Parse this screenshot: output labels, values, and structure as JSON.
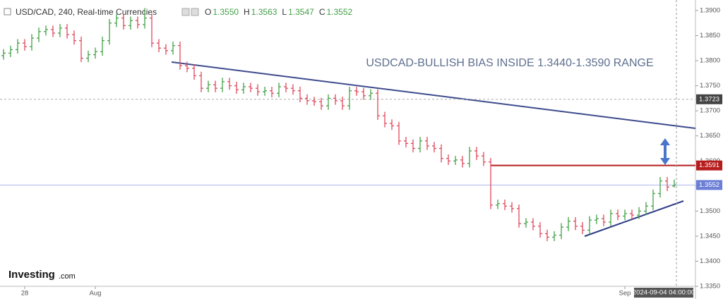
{
  "header": {
    "symbol": "USD/CAD, 240, Real-time Currencies",
    "ohlc": [
      {
        "key": "O",
        "value": "1.3550"
      },
      {
        "key": "H",
        "value": "1.3563"
      },
      {
        "key": "L",
        "value": "1.3547"
      },
      {
        "key": "C",
        "value": "1.3552"
      }
    ]
  },
  "logo": {
    "main": "Investing",
    "suffix": ".com"
  },
  "chart_data": {
    "type": "ohlc",
    "annotation": "USDCAD-BULLISH BIAS INSIDE 1.3440-1.3590 RANGE",
    "categories": [
      null,
      null,
      null,
      "28",
      null,
      null,
      null,
      null,
      null,
      null,
      null,
      null,
      null,
      "Aug",
      null,
      null,
      null,
      null,
      null,
      null,
      null,
      null,
      null,
      null,
      null,
      null,
      null,
      null,
      null,
      null,
      null,
      null,
      null,
      null,
      null,
      null,
      null,
      null,
      null,
      null,
      null,
      null,
      null,
      null,
      null,
      null,
      null,
      null,
      null,
      null,
      null,
      null,
      null,
      null,
      null,
      null,
      null,
      null,
      null,
      null,
      null,
      null,
      null,
      null,
      null,
      null,
      null,
      null,
      null,
      null,
      null,
      null,
      null,
      null,
      null,
      null,
      null,
      null,
      null,
      null,
      null,
      null,
      null,
      null,
      null,
      null,
      null,
      null,
      "Sep",
      null,
      null,
      null,
      null,
      null,
      null,
      null
    ],
    "crosshair_label": "2024-09-04 04:00:00",
    "open": [
      1.381,
      1.3815,
      1.3822,
      1.3835,
      1.3828,
      1.3845,
      1.3858,
      1.3862,
      1.3855,
      1.3865,
      1.3852,
      1.384,
      1.3805,
      1.3812,
      1.3818,
      1.384,
      1.3875,
      1.3885,
      1.387,
      1.388,
      1.3872,
      1.3885,
      1.3835,
      1.3825,
      1.382,
      1.383,
      1.379,
      1.3785,
      1.377,
      1.3745,
      1.3752,
      1.3745,
      1.3758,
      1.375,
      1.3742,
      1.3748,
      1.3745,
      1.3738,
      1.374,
      1.3735,
      1.3748,
      1.3745,
      1.374,
      1.3725,
      1.372,
      1.3718,
      1.371,
      1.3725,
      1.372,
      1.371,
      1.374,
      1.3738,
      1.373,
      1.3735,
      1.369,
      1.3675,
      1.367,
      1.364,
      1.3635,
      1.3625,
      1.364,
      1.363,
      1.3625,
      1.3605,
      1.36,
      1.3602,
      1.3595,
      1.362,
      1.361,
      1.3598,
      1.3512,
      1.3515,
      1.351,
      1.3505,
      1.3475,
      1.3478,
      1.347,
      1.3455,
      1.3448,
      1.3452,
      1.3468,
      1.348,
      1.347,
      1.3462,
      1.3482,
      1.3485,
      1.3478,
      1.3495,
      1.349,
      1.3495,
      1.3492,
      1.35,
      1.351,
      1.3535,
      1.356,
      1.355
    ],
    "high": [
      1.3823,
      1.383,
      1.3843,
      1.3843,
      1.3853,
      1.3866,
      1.387,
      1.387,
      1.3873,
      1.3873,
      1.386,
      1.3848,
      1.382,
      1.3826,
      1.3848,
      1.3883,
      1.3893,
      1.3893,
      1.3888,
      1.3888,
      1.3905,
      1.3893,
      1.3843,
      1.3833,
      1.3838,
      1.3838,
      1.3798,
      1.3793,
      1.3778,
      1.376,
      1.376,
      1.3766,
      1.3766,
      1.3758,
      1.3756,
      1.3756,
      1.3753,
      1.3748,
      1.3748,
      1.3756,
      1.3756,
      1.3753,
      1.3748,
      1.3733,
      1.3728,
      1.3726,
      1.3733,
      1.3733,
      1.3728,
      1.3748,
      1.3748,
      1.3746,
      1.3743,
      1.3743,
      1.3698,
      1.3683,
      1.3678,
      1.3648,
      1.3643,
      1.3648,
      1.3648,
      1.3638,
      1.3633,
      1.3613,
      1.361,
      1.361,
      1.3628,
      1.3628,
      1.3618,
      1.3606,
      1.3523,
      1.3523,
      1.3518,
      1.3513,
      1.3486,
      1.3486,
      1.3478,
      1.3463,
      1.346,
      1.3476,
      1.3488,
      1.3488,
      1.3478,
      1.349,
      1.3493,
      1.3493,
      1.3503,
      1.3503,
      1.3503,
      1.3503,
      1.3508,
      1.3518,
      1.3543,
      1.3568,
      1.3568,
      1.3563
    ],
    "low": [
      1.3802,
      1.3807,
      1.3814,
      1.382,
      1.382,
      1.3837,
      1.385,
      1.3847,
      1.3847,
      1.3844,
      1.3832,
      1.3797,
      1.3797,
      1.3804,
      1.381,
      1.3832,
      1.3867,
      1.3862,
      1.3862,
      1.3864,
      1.3864,
      1.3827,
      1.3817,
      1.3812,
      1.3812,
      1.3782,
      1.3777,
      1.3762,
      1.3737,
      1.3737,
      1.3737,
      1.3737,
      1.3742,
      1.3734,
      1.3734,
      1.3737,
      1.373,
      1.373,
      1.3727,
      1.3727,
      1.3737,
      1.3732,
      1.3717,
      1.3712,
      1.371,
      1.3702,
      1.3702,
      1.3712,
      1.3702,
      1.3702,
      1.373,
      1.3722,
      1.3722,
      1.3682,
      1.3667,
      1.3662,
      1.3632,
      1.3627,
      1.3617,
      1.3617,
      1.3622,
      1.3617,
      1.3597,
      1.3592,
      1.3592,
      1.3587,
      1.3587,
      1.3602,
      1.359,
      1.3504,
      1.3504,
      1.3502,
      1.3497,
      1.3467,
      1.3467,
      1.3462,
      1.3447,
      1.344,
      1.344,
      1.3444,
      1.346,
      1.3462,
      1.3454,
      1.3454,
      1.3474,
      1.347,
      1.347,
      1.3482,
      1.3482,
      1.3484,
      1.3484,
      1.3492,
      1.3502,
      1.3527,
      1.354,
      1.3547
    ],
    "close": [
      1.3815,
      1.3822,
      1.3835,
      1.3828,
      1.3845,
      1.3858,
      1.3862,
      1.3855,
      1.3865,
      1.3852,
      1.384,
      1.3805,
      1.3812,
      1.3818,
      1.384,
      1.3875,
      1.3885,
      1.387,
      1.388,
      1.3872,
      1.3885,
      1.3835,
      1.3825,
      1.382,
      1.383,
      1.379,
      1.3785,
      1.377,
      1.3745,
      1.3752,
      1.3745,
      1.3758,
      1.375,
      1.3742,
      1.3748,
      1.3745,
      1.3738,
      1.374,
      1.3735,
      1.3748,
      1.3745,
      1.374,
      1.3725,
      1.372,
      1.3718,
      1.371,
      1.3725,
      1.372,
      1.371,
      1.374,
      1.3738,
      1.373,
      1.3735,
      1.369,
      1.3675,
      1.367,
      1.364,
      1.3635,
      1.3625,
      1.364,
      1.363,
      1.3625,
      1.3605,
      1.36,
      1.3602,
      1.3595,
      1.362,
      1.361,
      1.3598,
      1.3512,
      1.3515,
      1.351,
      1.3505,
      1.3475,
      1.3478,
      1.347,
      1.3455,
      1.3448,
      1.3452,
      1.3468,
      1.348,
      1.347,
      1.3462,
      1.3482,
      1.3485,
      1.3478,
      1.3495,
      1.349,
      1.3495,
      1.3492,
      1.35,
      1.351,
      1.3535,
      1.356,
      1.3548,
      1.3552
    ],
    "up_color": "#43a047",
    "down_color": "#e0485c",
    "ylim": [
      1.335,
      1.3921
    ],
    "yticks": [
      {
        "value": 1.39,
        "label": "1.3900"
      },
      {
        "value": 1.385,
        "label": "1.3850"
      },
      {
        "value": 1.38,
        "label": "1.3800"
      },
      {
        "value": 1.375,
        "label": "1.3750"
      },
      {
        "value": 1.37,
        "label": "1.3700"
      },
      {
        "value": 1.365,
        "label": "1.3650"
      },
      {
        "value": 1.36,
        "label": "1.3600"
      },
      {
        "value": 1.355,
        "label": "1.3550"
      },
      {
        "value": 1.35,
        "label": "1.3500"
      },
      {
        "value": 1.345,
        "label": "1.3450"
      },
      {
        "value": 1.34,
        "label": "1.3400"
      },
      {
        "value": 1.335,
        "label": "1.3350"
      }
    ],
    "price_labels": [
      {
        "value": 1.3723,
        "label": "1.3723",
        "color": "#444444"
      },
      {
        "value": 1.3591,
        "label": "1.3591",
        "color": "#b71c1c"
      },
      {
        "value": 1.3552,
        "label": "1.3552",
        "color": "#6b7fd7"
      }
    ]
  }
}
